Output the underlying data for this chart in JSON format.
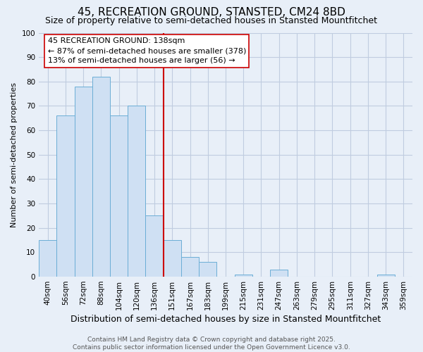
{
  "title": "45, RECREATION GROUND, STANSTED, CM24 8BD",
  "subtitle": "Size of property relative to semi-detached houses in Stansted Mountfitchet",
  "xlabel": "Distribution of semi-detached houses by size in Stansted Mountfitchet",
  "ylabel": "Number of semi-detached properties",
  "bar_labels": [
    "40sqm",
    "56sqm",
    "72sqm",
    "88sqm",
    "104sqm",
    "120sqm",
    "136sqm",
    "151sqm",
    "167sqm",
    "183sqm",
    "199sqm",
    "215sqm",
    "231sqm",
    "247sqm",
    "263sqm",
    "279sqm",
    "295sqm",
    "311sqm",
    "327sqm",
    "343sqm",
    "359sqm"
  ],
  "bar_values": [
    15,
    66,
    78,
    82,
    66,
    70,
    25,
    15,
    8,
    6,
    0,
    1,
    0,
    3,
    0,
    0,
    0,
    0,
    0,
    1,
    0
  ],
  "bar_color": "#cfe0f3",
  "bar_edge_color": "#6baed6",
  "vline_x": 7,
  "vline_color": "#cc0000",
  "annotation_title": "45 RECREATION GROUND: 138sqm",
  "annotation_line1": "← 87% of semi-detached houses are smaller (378)",
  "annotation_line2": "13% of semi-detached houses are larger (56) →",
  "annotation_box_color": "white",
  "annotation_box_edge": "#cc0000",
  "ylim": [
    0,
    100
  ],
  "yticks": [
    0,
    10,
    20,
    30,
    40,
    50,
    60,
    70,
    80,
    90,
    100
  ],
  "background_color": "#e8eff8",
  "plot_bg_color": "#e8eff8",
  "grid_color": "#c0cce0",
  "footer_line1": "Contains HM Land Registry data © Crown copyright and database right 2025.",
  "footer_line2": "Contains public sector information licensed under the Open Government Licence v3.0.",
  "title_fontsize": 11,
  "subtitle_fontsize": 9,
  "xlabel_fontsize": 9,
  "ylabel_fontsize": 8,
  "tick_fontsize": 7.5,
  "annotation_fontsize": 8,
  "footer_fontsize": 6.5
}
